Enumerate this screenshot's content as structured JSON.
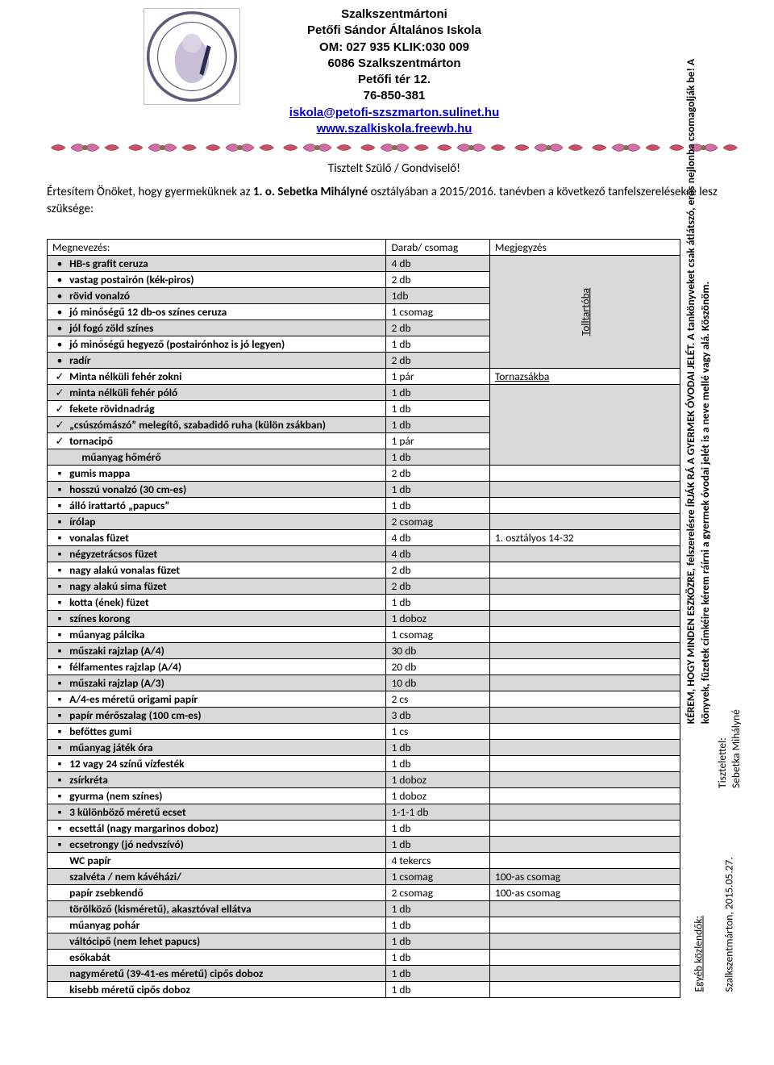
{
  "header": {
    "lines": [
      "Szalkszentmártoni",
      "Petőfi Sándor Általános Iskola",
      "OM: 027 935 KLIK:030 009",
      "6086 Szalkszentmárton",
      "Petőfi tér 12.",
      "76-850-381"
    ],
    "email": "iskola@petofi-szszmarton.sulinet.hu",
    "web": "www.szalkiskola.freewb.hu"
  },
  "greeting": "Tisztelt Szülő / Gondviselő!",
  "intro_parts": {
    "p1": "Értesítem Önöket, hogy gyermeküknek az ",
    "p2_bold": " 1.  o.  Sebetka Mihályné",
    "p3": " osztályában a 2015/2016. tanévben a következő tanfelszerelésekre lesz szüksége:"
  },
  "columns": {
    "name": "Megnevezés:",
    "qty": "Darab/ csomag",
    "note": "Megjegyzés"
  },
  "group_notes": {
    "tolltarto": "Tolltartóba",
    "tornazsak": "Tornazsákba"
  },
  "row_note_osztaly": "1.   osztályos  14-32",
  "row_note_100": "100-as csomag",
  "rows": [
    {
      "m": "•",
      "n": "HB-s grafit ceruza",
      "q": "4 db",
      "sh": 1,
      "b": 1
    },
    {
      "m": "•",
      "n": "vastag postairón (kék-piros)",
      "q": "2 db",
      "sh": 0,
      "b": 1
    },
    {
      "m": "•",
      "n": "rövid vonalzó",
      "q": "1db",
      "sh": 1,
      "b": 1
    },
    {
      "m": "•",
      "n": "jó minőségű 12 db-os színes ceruza",
      "q": "1 csomag",
      "sh": 0,
      "b": 1
    },
    {
      "m": "•",
      "n": "jól fogó zöld színes",
      "q": "2 db",
      "sh": 1,
      "b": 1
    },
    {
      "m": "•",
      "n": "jó minőségű hegyező (postairónhoz is jó legyen)",
      "q": "1 db",
      "sh": 0,
      "b": 1
    },
    {
      "m": "•",
      "n": "radír",
      "q": "2 db",
      "sh": 1,
      "b": 1
    },
    {
      "m": "✓",
      "n": "Minta nélküli fehér zokni",
      "q": "1 pár",
      "sh": 0,
      "b": 1,
      "note": "Tornazsákba",
      "noteU": 1
    },
    {
      "m": "✓",
      "n": "minta nélküli fehér póló",
      "q": "1 db",
      "sh": 1,
      "b": 1
    },
    {
      "m": "✓",
      "n": "fekete rövidnadrág",
      "q": "1 db",
      "sh": 0,
      "b": 1
    },
    {
      "m": "✓",
      "n": "„csúszómászó” melegítő, szabadidő ruha (külön zsákban)",
      "q": "1 db",
      "sh": 1,
      "b": 1
    },
    {
      "m": "✓",
      "n": "tornacipő",
      "q": "1 pár",
      "sh": 0,
      "b": 1
    },
    {
      "m": "",
      "n": "műanyag hőmérő",
      "q": "1 db",
      "sh": 1,
      "b": 1,
      "ind": 1
    },
    {
      "m": "▪",
      "n": "gumis mappa",
      "q": "2 db",
      "sh": 0,
      "b": 1
    },
    {
      "m": "▪",
      "n": "hosszú vonalzó (30 cm-es)",
      "q": "1 db",
      "sh": 1,
      "b": 1
    },
    {
      "m": "▪",
      "n": "álló irattartó „papucs”",
      "q": "1 db",
      "sh": 0,
      "b": 1
    },
    {
      "m": "▪",
      "n": "írólap",
      "q": "2 csomag",
      "sh": 1,
      "b": 1
    },
    {
      "m": "▪",
      "n": "vonalas füzet",
      "q": "4 db",
      "sh": 0,
      "b": 1,
      "note": "1.   osztályos  14-32"
    },
    {
      "m": "▪",
      "n": "négyzetrácsos füzet",
      "q": "4 db",
      "sh": 1,
      "b": 1
    },
    {
      "m": "▪",
      "n": "nagy alakú vonalas füzet",
      "q": "2 db",
      "sh": 0,
      "b": 1
    },
    {
      "m": "▪",
      "n": "nagy alakú sima füzet",
      "q": "2 db",
      "sh": 1,
      "b": 1
    },
    {
      "m": "▪",
      "n": "kotta (ének) füzet",
      "q": "1 db",
      "sh": 0,
      "b": 1
    },
    {
      "m": "▪",
      "n": "színes korong",
      "q": "1 doboz",
      "sh": 1,
      "b": 1
    },
    {
      "m": "▪",
      "n": "műanyag pálcika",
      "q": "1 csomag",
      "sh": 0,
      "b": 1
    },
    {
      "m": "▪",
      "n": "műszaki rajzlap (A/4)",
      "q": "30 db",
      "sh": 1,
      "b": 1
    },
    {
      "m": "▪",
      "n": "félfamentes rajzlap (A/4)",
      "q": "20 db",
      "sh": 0,
      "b": 1
    },
    {
      "m": "▪",
      "n": "műszaki rajzlap (A/3)",
      "q": "10 db",
      "sh": 1,
      "b": 1
    },
    {
      "m": "▪",
      "n": "A/4-es méretű origami papír",
      "q": "2 cs",
      "sh": 0,
      "b": 1
    },
    {
      "m": "▪",
      "n": "papír mérőszalag (100 cm-es)",
      "q": "3 db",
      "sh": 1,
      "b": 1
    },
    {
      "m": "▪",
      "n": "befőttes gumi",
      "q": "1 cs",
      "sh": 0,
      "b": 1
    },
    {
      "m": "▪",
      "n": "műanyag játék óra",
      "q": "1 db",
      "sh": 1,
      "b": 1
    },
    {
      "m": "▪",
      "n": "12 vagy 24 színű vízfesték",
      "q": "1 db",
      "sh": 0,
      "b": 1
    },
    {
      "m": "▪",
      "n": "zsírkréta",
      "q": "1 doboz",
      "sh": 1,
      "b": 1
    },
    {
      "m": "▪",
      "n": "gyurma (nem színes)",
      "q": "1 doboz",
      "sh": 0,
      "b": 1
    },
    {
      "m": "▪",
      "n": "3 különböző méretű ecset",
      "q": "1-1-1 db",
      "sh": 1,
      "b": 1
    },
    {
      "m": "▪",
      "n": "ecsettál (nagy margarinos doboz)",
      "q": "1 db",
      "sh": 0,
      "b": 1
    },
    {
      "m": "▪",
      "n": "ecsetrongy (jó nedvszívó)",
      "q": "1 db",
      "sh": 1,
      "b": 1
    },
    {
      "m": "",
      "n": "WC papír",
      "q": "4 tekercs",
      "sh": 0,
      "b": 1
    },
    {
      "m": "",
      "n": "szalvéta  / nem kávéházi/",
      "q": "1 csomag",
      "sh": 1,
      "b": 1,
      "note": "100-as csomag"
    },
    {
      "m": "",
      "n": "papír zsebkendő",
      "q": "2 csomag",
      "sh": 0,
      "b": 1,
      "note": "100-as csomag"
    },
    {
      "m": "",
      "n": "törölköző (kisméretű), akasztóval ellátva",
      "q": "1 db",
      "sh": 1,
      "b": 1
    },
    {
      "m": "",
      "n": "műanyag pohár",
      "q": "1 db",
      "sh": 0,
      "b": 1
    },
    {
      "m": "",
      "n": "váltócipő (nem lehet papucs)",
      "q": "1 db",
      "sh": 1,
      "b": 1
    },
    {
      "m": "",
      "n": "esőkabát",
      "q": "1 db",
      "sh": 0,
      "b": 1
    },
    {
      "m": "",
      "n": "nagyméretű (39-41-es méretű) cipős doboz",
      "q": "1 db",
      "sh": 1,
      "b": 1
    },
    {
      "m": "",
      "n": "kisebb méretű cipős doboz",
      "q": "1 db",
      "sh": 0,
      "b": 1
    }
  ],
  "side": {
    "egyeb": "Egyéb közlendők:",
    "kerem_line1": "KÉREM, HOGY MINDEN ESZKÖZRE, felszerelésre ÍRJÁK RÁ A GYERMEK ÓVODAI JELÉT. A tankönyveket csak átlátszó, erős nejlonba csomagolják be! A",
    "kerem_line2": "könyvek, füzetek címkéire kérem ráírni a gyermek óvodai jelét is a neve mellé vagy alá. Köszönöm.",
    "date": "Szalkszentmárton, 2015.05.27.",
    "tisztelettel": "Tisztelettel:",
    "signature": "Sebetka Mihályné"
  },
  "colors": {
    "shade": "#d9d9d9",
    "link": "#0000d0"
  }
}
